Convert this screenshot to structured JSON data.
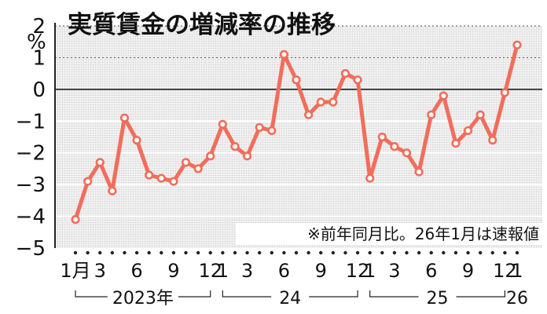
{
  "chart_data": {
    "type": "line",
    "title": "実質賃金の増減率の推移",
    "ylabel": "%",
    "note": "※前年同月比。26年1月は速報値",
    "ylim": [
      -5,
      2
    ],
    "yticks": [
      "2",
      "1",
      "0",
      "−1",
      "−2",
      "−3",
      "−4",
      "−5"
    ],
    "tick_labels": [
      {
        "i": 0,
        "text": "1月"
      },
      {
        "i": 2,
        "text": "3"
      },
      {
        "i": 5,
        "text": "6"
      },
      {
        "i": 8,
        "text": "9"
      },
      {
        "i": 11,
        "text": "12"
      },
      {
        "i": 12,
        "text": "1"
      },
      {
        "i": 14,
        "text": "3"
      },
      {
        "i": 17,
        "text": "6"
      },
      {
        "i": 20,
        "text": "9"
      },
      {
        "i": 23,
        "text": "12"
      },
      {
        "i": 24,
        "text": "1"
      },
      {
        "i": 26,
        "text": "3"
      },
      {
        "i": 29,
        "text": "6"
      },
      {
        "i": 32,
        "text": "9"
      },
      {
        "i": 35,
        "text": "12"
      },
      {
        "i": 36,
        "text": "1"
      }
    ],
    "year_labels": [
      {
        "text": "2023年",
        "from": 0,
        "to": 11
      },
      {
        "text": "24",
        "from": 12,
        "to": 23
      },
      {
        "text": "25",
        "from": 24,
        "to": 35
      },
      {
        "text": "26",
        "from": 36,
        "to": 36
      }
    ],
    "x": [
      "2023-01",
      "2023-02",
      "2023-03",
      "2023-04",
      "2023-05",
      "2023-06",
      "2023-07",
      "2023-08",
      "2023-09",
      "2023-10",
      "2023-11",
      "2023-12",
      "2024-01",
      "2024-02",
      "2024-03",
      "2024-04",
      "2024-05",
      "2024-06",
      "2024-07",
      "2024-08",
      "2024-09",
      "2024-10",
      "2024-11",
      "2024-12",
      "2025-01",
      "2025-02",
      "2025-03",
      "2025-04",
      "2025-05",
      "2025-06",
      "2025-07",
      "2025-08",
      "2025-09",
      "2025-10",
      "2025-11",
      "2025-12",
      "2026-01"
    ],
    "series": [
      {
        "color": "#f26d5b",
        "values": [
          -4.1,
          -2.9,
          -2.3,
          -3.2,
          -0.9,
          -1.6,
          -2.7,
          -2.8,
          -2.9,
          -2.3,
          -2.5,
          -2.1,
          -1.1,
          -1.8,
          -2.1,
          -1.2,
          -1.3,
          1.1,
          0.3,
          -0.8,
          -0.4,
          -0.4,
          0.5,
          0.3,
          -2.8,
          -1.5,
          -1.8,
          -2.0,
          -2.6,
          -0.8,
          -0.2,
          -1.7,
          -1.3,
          -0.8,
          -1.6,
          -0.1,
          1.4
        ]
      }
    ],
    "shaded": true,
    "zero_line": true
  }
}
